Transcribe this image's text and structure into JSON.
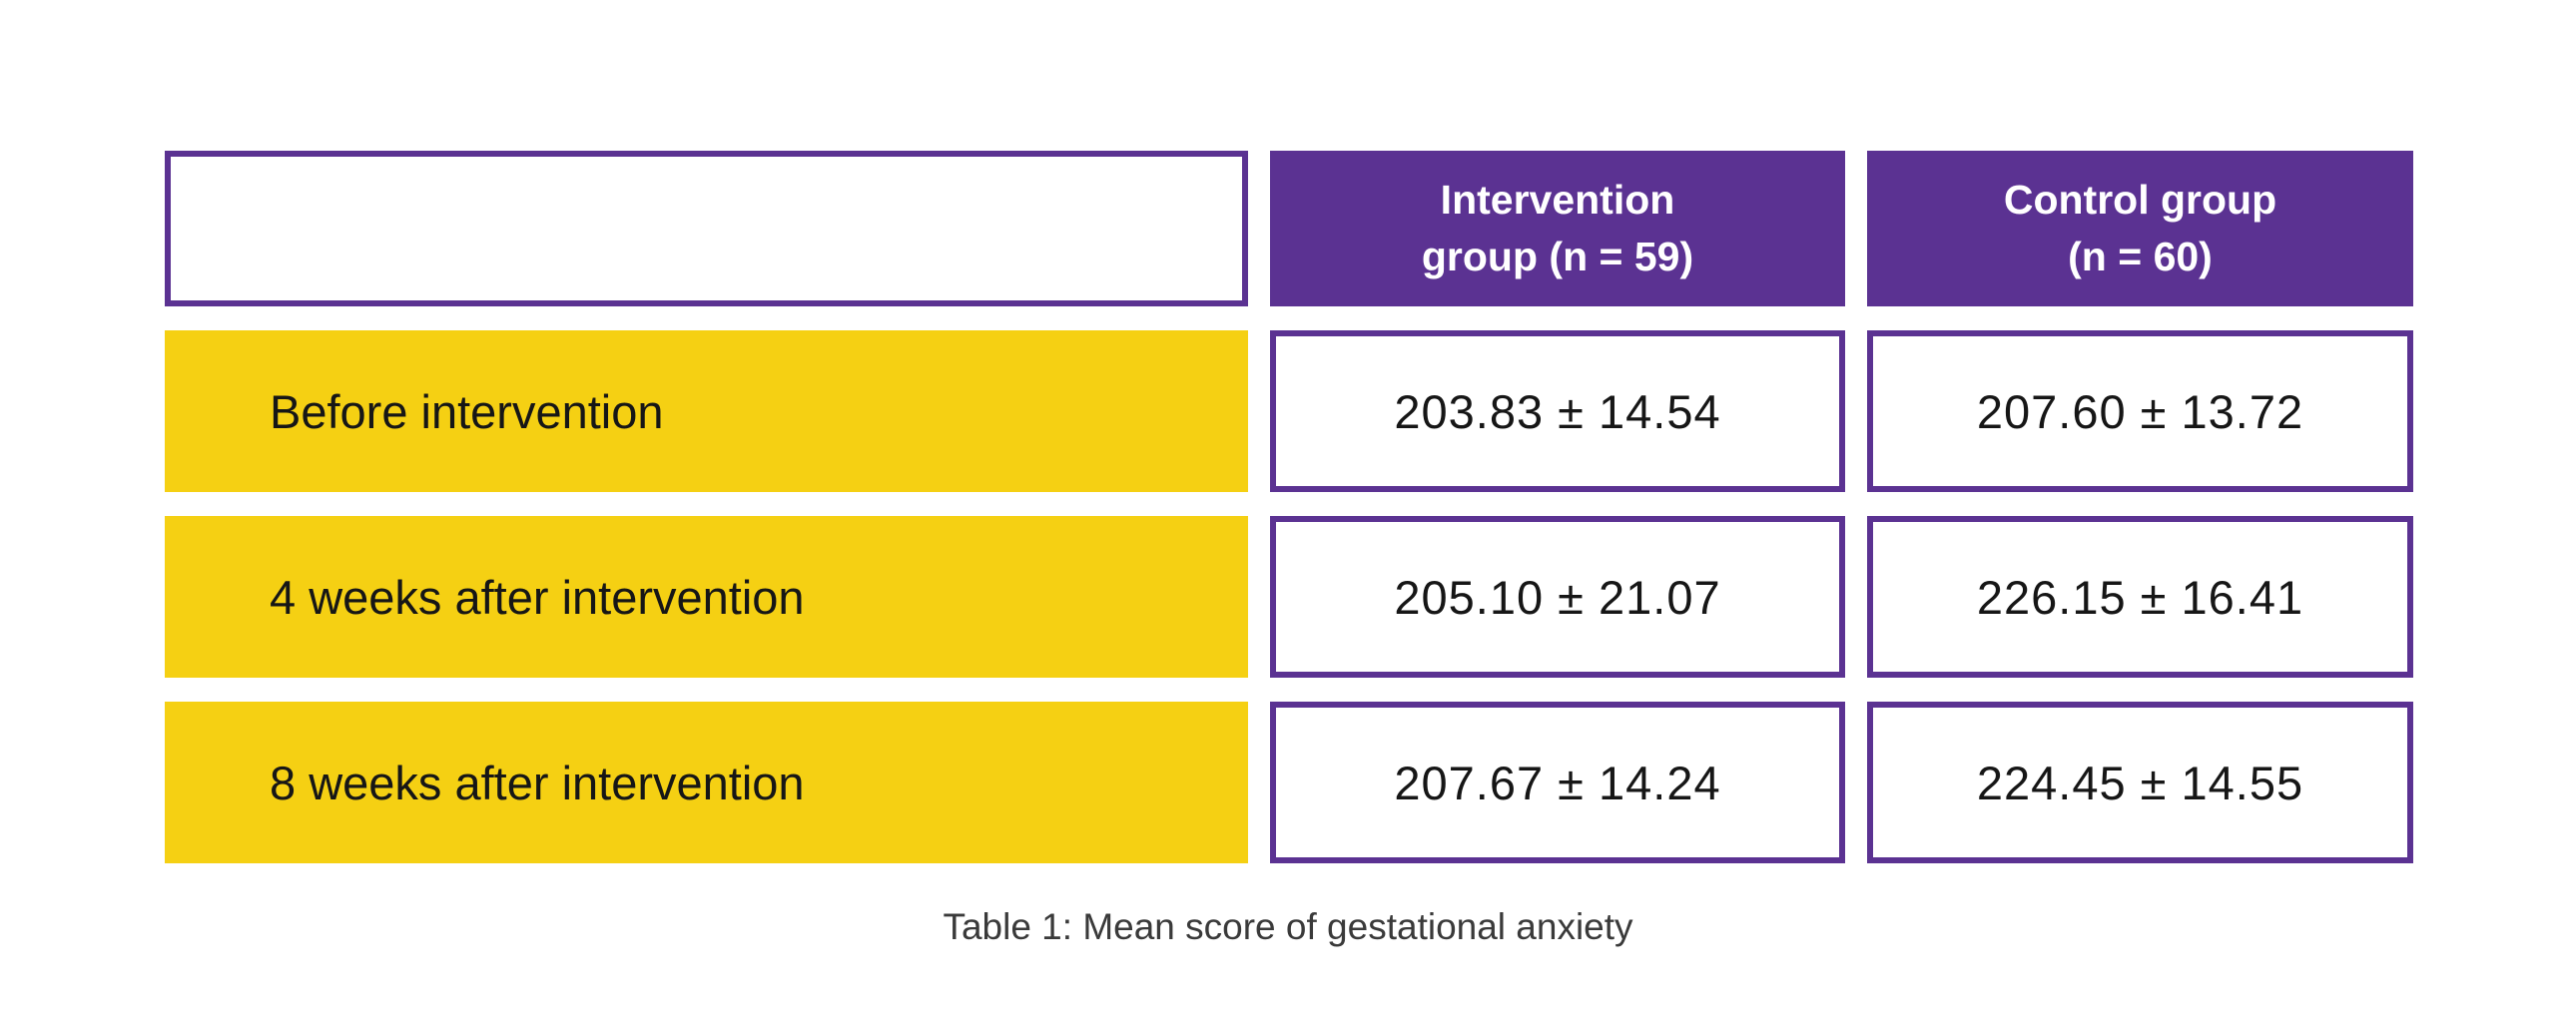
{
  "figure": {
    "caption": "Table 1: Mean score of gestational anxiety"
  },
  "table": {
    "corner_label": "",
    "columns": [
      {
        "label": "Intervention group (n = 59)",
        "lines": [
          "Intervention",
          "group (n = 59)"
        ]
      },
      {
        "label": "Control group (n = 60)",
        "lines": [
          "Control group",
          "(n = 60)"
        ]
      }
    ],
    "rows": [
      {
        "label": "Before intervention",
        "intervention": "203.83 ± 14.54",
        "control": "207.60 ± 13.72"
      },
      {
        "label": "4 weeks after intervention",
        "intervention": "205.10 ± 21.07",
        "control": "226.15 ± 16.41"
      },
      {
        "label": "8 weeks after intervention",
        "intervention": "207.67 ± 14.24",
        "control": "224.45 ± 14.55"
      }
    ]
  },
  "colors": {
    "header_purple": "#5b3292",
    "border_purple": "#5b3292",
    "row_yellow": "#f5d013",
    "text_dark": "#161616",
    "header_text": "#ffffff",
    "caption_text": "#3a3a3a"
  },
  "chart_data": {
    "type": "table",
    "title": "Table 1: Mean score of gestational anxiety",
    "value_format": "mean ± SD",
    "categories": [
      "Before intervention",
      "4 weeks after intervention",
      "8 weeks after intervention"
    ],
    "series": [
      {
        "name": "Intervention group (n = 59)",
        "n": 59,
        "values": [
          "203.83 ± 14.54",
          "205.10 ± 21.07",
          "207.67 ± 14.24"
        ],
        "mean": [
          203.83,
          205.1,
          207.67
        ],
        "sd": [
          14.54,
          21.07,
          14.24
        ]
      },
      {
        "name": "Control group (n = 60)",
        "n": 60,
        "values": [
          "207.60 ± 13.72",
          "226.15 ± 16.41",
          "224.45 ± 14.55"
        ],
        "mean": [
          207.6,
          226.15,
          224.45
        ],
        "sd": [
          13.72,
          16.41,
          14.55
        ]
      }
    ]
  }
}
